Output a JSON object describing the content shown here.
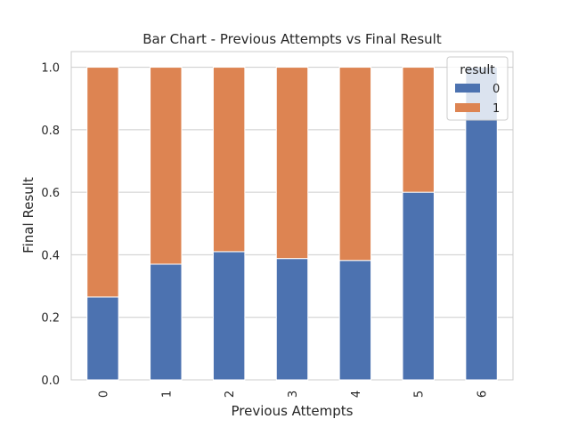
{
  "chart_data": {
    "type": "bar",
    "stacked": true,
    "title": "Bar Chart - Previous Attempts vs Final Result",
    "xlabel": "Previous Attempts",
    "ylabel": "Final Result",
    "categories": [
      "0",
      "1",
      "2",
      "3",
      "4",
      "5",
      "6"
    ],
    "series": [
      {
        "name": "0",
        "color": "#4c72b0",
        "values": [
          0.265,
          0.37,
          0.41,
          0.388,
          0.382,
          0.6,
          1.0
        ]
      },
      {
        "name": "1",
        "color": "#dd8452",
        "values": [
          0.735,
          0.63,
          0.59,
          0.612,
          0.618,
          0.4,
          0.0
        ]
      }
    ],
    "ylim": [
      0,
      1.05
    ],
    "yticks": [
      "0.0",
      "0.2",
      "0.4",
      "0.6",
      "0.8",
      "1.0"
    ],
    "grid": true,
    "legend": {
      "title": "result",
      "placement": "top-right"
    }
  }
}
